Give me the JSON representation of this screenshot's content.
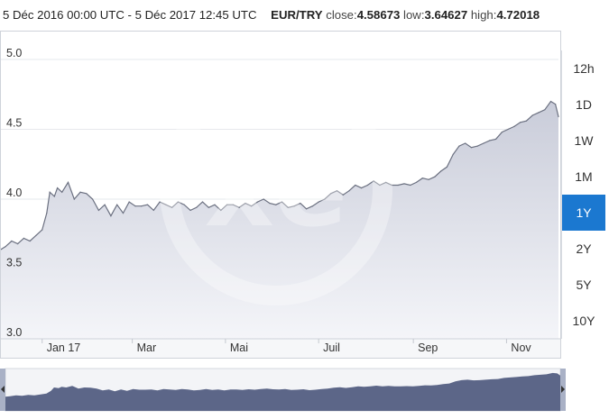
{
  "header": {
    "date_range": "5 Déc 2016 00:00 UTC - 5 Déc 2017 12:45 UTC",
    "pair": "EUR/TRY",
    "close_label": "close:",
    "close_value": "4.58673",
    "low_label": "low:",
    "low_value": "3.64627",
    "high_label": "high:",
    "high_value": "4.72018"
  },
  "range_buttons": [
    {
      "label": "12h",
      "active": false
    },
    {
      "label": "1D",
      "active": false
    },
    {
      "label": "1W",
      "active": false
    },
    {
      "label": "1M",
      "active": false
    },
    {
      "label": "1Y",
      "active": true
    },
    {
      "label": "2Y",
      "active": false
    },
    {
      "label": "5Y",
      "active": false
    },
    {
      "label": "10Y",
      "active": false
    }
  ],
  "colors": {
    "line": "#6b7080",
    "area_top": "#c9ccd9",
    "area_bottom": "#f4f5f9",
    "active_button": "#1b78d0",
    "navigator_fill": "#5c6688",
    "navigator_handle": "#a9b1c6"
  },
  "icons": {
    "watermark": "xe-logo-icon",
    "nav_left": "triangle-left-icon",
    "nav_right": "triangle-right-icon"
  },
  "chart_data": {
    "type": "area",
    "ylim": [
      3.0,
      5.2
    ],
    "yticks": [
      3.0,
      3.5,
      4.0,
      4.5,
      5.0
    ],
    "ytick_labels": [
      "3.0",
      "3.5",
      "4.0",
      "4.5",
      "5.0"
    ],
    "xlim": [
      "2016-12-05",
      "2017-12-05"
    ],
    "xticks": [
      {
        "date": "2017-01-01",
        "label": "Jan 17"
      },
      {
        "date": "2017-03-01",
        "label": "Mar"
      },
      {
        "date": "2017-05-01",
        "label": "Mai"
      },
      {
        "date": "2017-07-01",
        "label": "Juil"
      },
      {
        "date": "2017-09-01",
        "label": "Sep"
      },
      {
        "date": "2017-11-01",
        "label": "Nov"
      }
    ],
    "grid": true,
    "x": [
      "2016-12-05",
      "2016-12-08",
      "2016-12-12",
      "2016-12-16",
      "2016-12-20",
      "2016-12-24",
      "2016-12-28",
      "2017-01-01",
      "2017-01-04",
      "2017-01-06",
      "2017-01-09",
      "2017-01-11",
      "2017-01-14",
      "2017-01-18",
      "2017-01-22",
      "2017-01-26",
      "2017-01-30",
      "2017-02-03",
      "2017-02-07",
      "2017-02-11",
      "2017-02-15",
      "2017-02-19",
      "2017-02-23",
      "2017-02-27",
      "2017-03-03",
      "2017-03-07",
      "2017-03-11",
      "2017-03-15",
      "2017-03-19",
      "2017-03-23",
      "2017-03-27",
      "2017-03-31",
      "2017-04-04",
      "2017-04-08",
      "2017-04-12",
      "2017-04-16",
      "2017-04-20",
      "2017-04-24",
      "2017-04-28",
      "2017-05-02",
      "2017-05-06",
      "2017-05-10",
      "2017-05-14",
      "2017-05-18",
      "2017-05-22",
      "2017-05-26",
      "2017-05-30",
      "2017-06-03",
      "2017-06-07",
      "2017-06-11",
      "2017-06-15",
      "2017-06-19",
      "2017-06-23",
      "2017-06-27",
      "2017-07-01",
      "2017-07-05",
      "2017-07-09",
      "2017-07-13",
      "2017-07-17",
      "2017-07-21",
      "2017-07-25",
      "2017-07-29",
      "2017-08-02",
      "2017-08-06",
      "2017-08-10",
      "2017-08-14",
      "2017-08-18",
      "2017-08-22",
      "2017-08-26",
      "2017-08-30",
      "2017-09-03",
      "2017-09-07",
      "2017-09-11",
      "2017-09-15",
      "2017-09-19",
      "2017-09-23",
      "2017-09-27",
      "2017-10-01",
      "2017-10-05",
      "2017-10-09",
      "2017-10-13",
      "2017-10-17",
      "2017-10-21",
      "2017-10-25",
      "2017-10-29",
      "2017-11-02",
      "2017-11-06",
      "2017-11-10",
      "2017-11-14",
      "2017-11-18",
      "2017-11-22",
      "2017-11-26",
      "2017-11-30",
      "2017-12-03",
      "2017-12-05"
    ],
    "series": [
      {
        "values": [
          3.64,
          3.66,
          3.7,
          3.68,
          3.72,
          3.7,
          3.74,
          3.78,
          3.9,
          4.05,
          4.02,
          4.08,
          4.05,
          4.12,
          4.0,
          4.05,
          4.04,
          4.0,
          3.92,
          3.96,
          3.88,
          3.96,
          3.9,
          3.98,
          3.95,
          3.95,
          3.96,
          3.92,
          3.98,
          3.96,
          3.94,
          3.98,
          3.96,
          3.92,
          3.94,
          3.98,
          3.94,
          3.96,
          3.92,
          3.96,
          3.96,
          3.94,
          3.97,
          3.95,
          3.98,
          4.0,
          3.97,
          3.96,
          3.98,
          3.94,
          3.95,
          3.97,
          3.93,
          3.95,
          3.98,
          4.0,
          4.04,
          4.06,
          4.03,
          4.06,
          4.1,
          4.08,
          4.1,
          4.13,
          4.1,
          4.12,
          4.1,
          4.1,
          4.11,
          4.1,
          4.12,
          4.15,
          4.14,
          4.16,
          4.2,
          4.23,
          4.32,
          4.38,
          4.4,
          4.37,
          4.38,
          4.4,
          4.42,
          4.43,
          4.48,
          4.5,
          4.52,
          4.55,
          4.56,
          4.6,
          4.62,
          4.64,
          4.7,
          4.68,
          4.59
        ]
      }
    ]
  }
}
